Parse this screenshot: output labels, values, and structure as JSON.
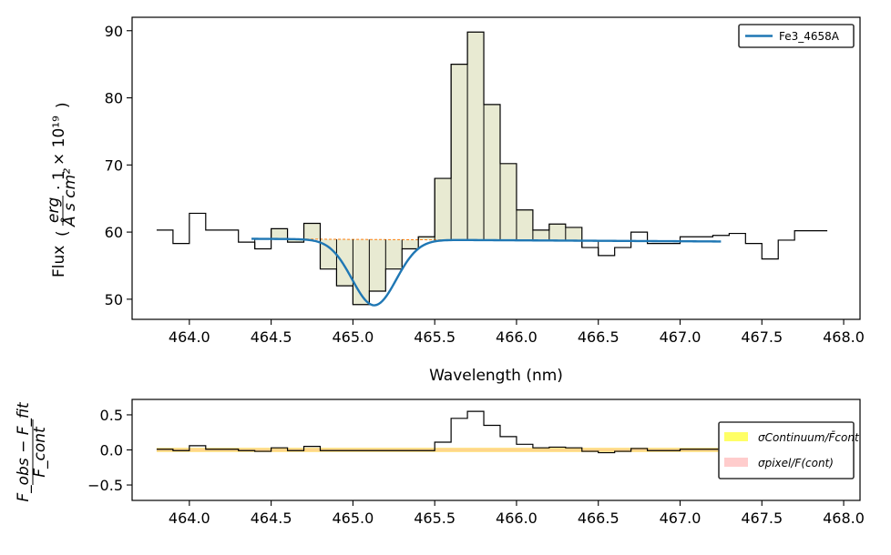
{
  "chart_data": [
    {
      "type": "line",
      "xlabel": "Wavelength (nm)",
      "ylabel": "Flux",
      "ylabel_unit": "erg / (Å s cm²) · 1×10¹⁹",
      "xlim": [
        463.65,
        468.1
      ],
      "ylim": [
        47,
        92
      ],
      "xticks": [
        "464.0",
        "464.5",
        "465.0",
        "465.5",
        "466.0",
        "466.5",
        "467.0",
        "467.5",
        "468.0"
      ],
      "xtick_values": [
        464.0,
        464.5,
        465.0,
        465.5,
        466.0,
        466.5,
        467.0,
        467.5,
        468.0
      ],
      "yticks": [
        "50",
        "60",
        "70",
        "80",
        "90"
      ],
      "ytick_values": [
        50,
        60,
        70,
        80,
        90
      ],
      "legend": {
        "loc": "upper-right",
        "entries": [
          {
            "label": "Fe3_4658A",
            "color": "#1f77b4"
          }
        ]
      },
      "spectrum": {
        "x": [
          463.85,
          463.95,
          464.05,
          464.15,
          464.25,
          464.35,
          464.45,
          464.55,
          464.65,
          464.75,
          464.85,
          464.95,
          465.05,
          465.15,
          465.25,
          465.35,
          465.45,
          465.55,
          465.65,
          465.75,
          465.85,
          465.95,
          466.05,
          466.15,
          466.25,
          466.35,
          466.45,
          466.55,
          466.65,
          466.75,
          466.85,
          466.95,
          467.05,
          467.15,
          467.25,
          467.35,
          467.45,
          467.55,
          467.65,
          467.75,
          467.85
        ],
        "y": [
          60.3,
          58.3,
          62.8,
          60.3,
          60.3,
          58.5,
          57.5,
          60.5,
          58.5,
          61.3,
          54.5,
          52.0,
          49.2,
          51.2,
          54.5,
          57.5,
          59.3,
          68.0,
          85.0,
          89.8,
          79.0,
          70.2,
          63.3,
          60.3,
          61.2,
          60.7,
          57.7,
          56.5,
          57.7,
          60.0,
          58.3,
          58.3,
          59.3,
          59.3,
          59.5,
          59.8,
          58.3,
          56.0,
          58.8,
          60.2,
          60.2
        ],
        "color": "#000000"
      },
      "fit": {
        "label": "Fe3_4658A",
        "color": "#1f77b4",
        "x_range": [
          464.38,
          467.25
        ],
        "continuum": [
          59.0,
          58.6
        ],
        "center": 465.13,
        "amplitude": -9.8,
        "sigma": 0.135,
        "fill_color": "#e8ead2"
      },
      "continuum_line": {
        "color": "#ff7f0e",
        "style": "dashed"
      }
    },
    {
      "type": "line",
      "ylabel": "(F_obs − F_fit) / F_cont",
      "xlim": [
        463.65,
        468.1
      ],
      "ylim": [
        -0.72,
        0.72
      ],
      "xticks": [
        "464.0",
        "464.5",
        "465.0",
        "465.5",
        "466.0",
        "466.5",
        "467.0",
        "467.5",
        "468.0"
      ],
      "yticks": [
        "0.5",
        "0.0",
        "−0.5"
      ],
      "ytick_values": [
        0.5,
        0.0,
        -0.5
      ],
      "legend": {
        "loc": "right",
        "entries": [
          {
            "label": "σContinuum/F̄cont",
            "color": "#ffff66"
          },
          {
            "label": "σpixel/F(cont)",
            "color": "#ffcccc"
          }
        ]
      },
      "residual_x": [
        463.85,
        463.95,
        464.05,
        464.15,
        464.25,
        464.35,
        464.45,
        464.55,
        464.65,
        464.75,
        464.85,
        464.95,
        465.05,
        465.15,
        465.25,
        465.35,
        465.45,
        465.55,
        465.65,
        465.75,
        465.85,
        465.95,
        466.05,
        466.15,
        466.25,
        466.35,
        466.45,
        466.55,
        466.65,
        466.75,
        466.85,
        466.95,
        467.05,
        467.15,
        467.25,
        467.35,
        467.45,
        467.55,
        467.65,
        467.75,
        467.85
      ],
      "residual_y": [
        0.01,
        -0.01,
        0.06,
        0.01,
        0.01,
        -0.01,
        -0.02,
        0.03,
        -0.01,
        0.05,
        -0.01,
        -0.01,
        -0.01,
        -0.01,
        -0.01,
        -0.01,
        -0.01,
        0.11,
        0.45,
        0.55,
        0.35,
        0.19,
        0.08,
        0.03,
        0.04,
        0.03,
        -0.02,
        -0.04,
        -0.02,
        0.02,
        -0.01,
        -0.01,
        0.01,
        0.01,
        0.01,
        0.02,
        -0.01,
        -0.04,
        0.0,
        0.03,
        0.03
      ],
      "band_halfwidth": 0.03
    }
  ]
}
